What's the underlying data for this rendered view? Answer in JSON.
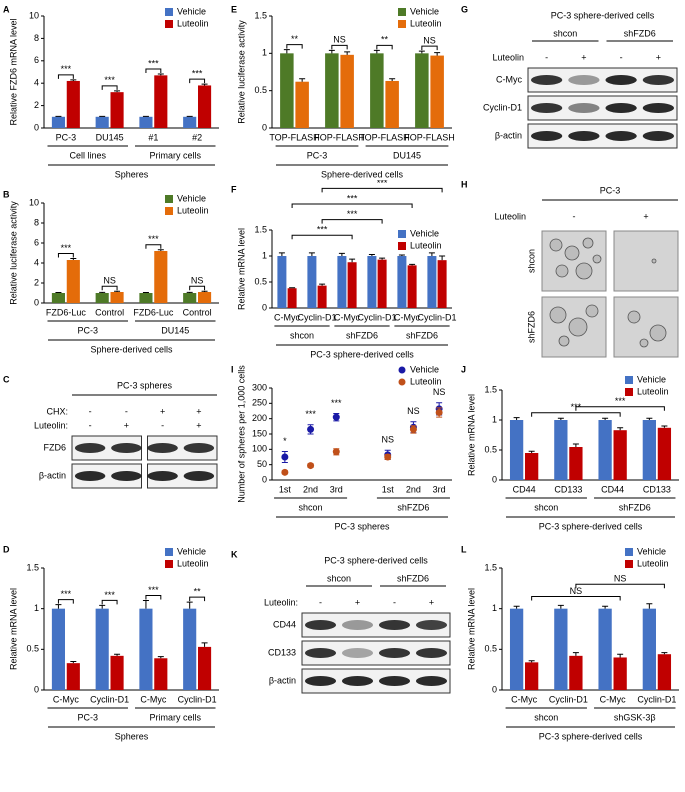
{
  "chart_data": [
    {
      "label": "A",
      "type": "bar",
      "ylabel": "Relative FZD6 mRNA level",
      "categories": [
        "PC-3",
        "DU145",
        "#1",
        "#2"
      ],
      "groups": [
        "Cell lines",
        "Primary cells"
      ],
      "group_title": "Spheres",
      "series": [
        {
          "name": "Vehicle",
          "color": "#4472c4",
          "values": [
            1,
            1,
            1,
            1
          ],
          "errors": [
            0.04,
            0.04,
            0.04,
            0.04
          ]
        },
        {
          "name": "Luteolin",
          "color": "#c00000",
          "values": [
            4.2,
            3.2,
            4.7,
            3.8
          ],
          "errors": [
            0.1,
            0.12,
            0.12,
            0.12
          ]
        }
      ],
      "significance": [
        "***",
        "***",
        "***",
        "***"
      ],
      "ylim": [
        0,
        10
      ],
      "yticks": [
        0,
        2,
        4,
        6,
        8,
        10
      ],
      "legend": "upper right"
    },
    {
      "label": "B",
      "type": "bar",
      "ylabel": "Relative luciferase activity",
      "categories": [
        "FZD6-Luc",
        "Control",
        "FZD6-Luc",
        "Control"
      ],
      "groups": [
        "PC-3",
        "DU145"
      ],
      "group_title": "Sphere-derived cells",
      "series": [
        {
          "name": "Vehicle",
          "color": "#4e7a27",
          "values": [
            1,
            1,
            1,
            1
          ],
          "errors": [
            0.05,
            0.06,
            0.05,
            0.06
          ]
        },
        {
          "name": "Luteolin",
          "color": "#e46c0a",
          "values": [
            4.3,
            1.1,
            5.2,
            1.1
          ],
          "errors": [
            0.15,
            0.08,
            0.12,
            0.08
          ]
        }
      ],
      "significance": [
        "***",
        "NS",
        "***",
        "NS"
      ],
      "ylim": [
        0,
        10
      ],
      "yticks": [
        0,
        2,
        4,
        6,
        8,
        10
      ],
      "legend": "upper right"
    },
    {
      "label": "D",
      "type": "bar",
      "ylabel": "Relative mRNA level",
      "categories": [
        "C-Myc",
        "Cyclin-D1",
        "C-Myc",
        "Cyclin-D1"
      ],
      "groups": [
        "PC-3",
        "Primary cells"
      ],
      "group_title": "Spheres",
      "series": [
        {
          "name": "Vehicle",
          "color": "#4472c4",
          "values": [
            1,
            1,
            1,
            1
          ],
          "errors": [
            0.05,
            0.04,
            0.1,
            0.08
          ]
        },
        {
          "name": "Luteolin",
          "color": "#c00000",
          "values": [
            0.33,
            0.42,
            0.39,
            0.53
          ],
          "errors": [
            0.02,
            0.02,
            0.02,
            0.05
          ]
        }
      ],
      "significance": [
        "***",
        "***",
        "***",
        "**"
      ],
      "ylim": [
        0,
        1.5
      ],
      "yticks": [
        0,
        0.5,
        1,
        1.5
      ],
      "legend": "upper right"
    },
    {
      "label": "E",
      "type": "bar",
      "ylabel": "Relative luciferase activity",
      "categories": [
        "TOP-FLASH",
        "FOP-FLASH",
        "TOP-FLASH",
        "FOP-FLASH"
      ],
      "groups": [
        "PC-3",
        "DU145"
      ],
      "group_title": "Sphere-derived cells",
      "series": [
        {
          "name": "Vehicle",
          "color": "#4e7a27",
          "values": [
            1,
            1,
            1,
            1
          ],
          "errors": [
            0.05,
            0.04,
            0.04,
            0.03
          ]
        },
        {
          "name": "Luteolin",
          "color": "#e46c0a",
          "values": [
            0.62,
            0.98,
            0.63,
            0.97
          ],
          "errors": [
            0.04,
            0.04,
            0.03,
            0.04
          ]
        }
      ],
      "significance": [
        "**",
        "NS",
        "**",
        "NS"
      ],
      "ylim": [
        0,
        1.5
      ],
      "yticks": [
        0,
        0.5,
        1,
        1.5
      ],
      "legend": "upper right"
    },
    {
      "label": "F",
      "type": "bar",
      "ylabel": "Relative mRNA level",
      "categories": [
        "C-Myc",
        "Cyclin-D1",
        "C-Myc",
        "Cyclin-D1",
        "C-Myc",
        "Cyclin-D1"
      ],
      "groups": [
        "shcon",
        "shFZD6",
        "shFZD6"
      ],
      "group_title": "PC-3 sphere-derived cells",
      "series": [
        {
          "name": "Vehicle",
          "color": "#4472c4",
          "values": [
            1,
            1,
            1,
            1,
            1,
            1
          ],
          "errors": [
            0.06,
            0.06,
            0.05,
            0.03,
            0.02,
            0.06
          ]
        },
        {
          "name": "Luteolin",
          "color": "#c00000",
          "values": [
            0.38,
            0.43,
            0.88,
            0.93,
            0.82,
            0.92
          ],
          "errors": [
            0.01,
            0.03,
            0.06,
            0.03,
            0.02,
            0.08
          ]
        }
      ],
      "annotations": [
        "***",
        "***",
        "***",
        "***"
      ],
      "ylim": [
        0,
        1.5
      ],
      "yticks": [
        0,
        0.5,
        1,
        1.5
      ],
      "legend": "upper right"
    },
    {
      "label": "I",
      "type": "scatter",
      "ylabel": "Number of spheres per 1,000 cells",
      "categories": [
        "1st",
        "2nd",
        "3rd",
        null,
        "1st",
        "2nd",
        "3rd"
      ],
      "groups": [
        "shcon",
        "shFZD6"
      ],
      "group_title": "PC-3 spheres",
      "series": [
        {
          "name": "Vehicle",
          "color": "#1a1aa6",
          "values": [
            75,
            165,
            205,
            null,
            82,
            172,
            232
          ],
          "errors": [
            18,
            15,
            12,
            null,
            15,
            18,
            20
          ]
        },
        {
          "name": "Luteolin",
          "color": "#c0501a",
          "values": [
            25,
            47,
            92,
            null,
            75,
            165,
            220
          ],
          "errors": [
            5,
            6,
            10,
            null,
            8,
            12,
            15
          ]
        }
      ],
      "significance": [
        "*",
        "***",
        "***",
        null,
        "NS",
        "NS",
        "NS"
      ],
      "ylim": [
        0,
        300
      ],
      "yticks": [
        0,
        50,
        100,
        150,
        200,
        250,
        300
      ],
      "legend": "upper right"
    },
    {
      "label": "J",
      "type": "bar",
      "ylabel": "Relative mRNA level",
      "categories": [
        "CD44",
        "CD133",
        "CD44",
        "CD133"
      ],
      "groups": [
        "shcon",
        "shFZD6"
      ],
      "group_title": "PC-3 sphere-derived cells",
      "series": [
        {
          "name": "Vehicle",
          "color": "#4472c4",
          "values": [
            1,
            1,
            1,
            1
          ],
          "errors": [
            0.04,
            0.03,
            0.03,
            0.03
          ]
        },
        {
          "name": "Luteolin",
          "color": "#c00000",
          "values": [
            0.45,
            0.55,
            0.83,
            0.87
          ],
          "errors": [
            0.03,
            0.05,
            0.04,
            0.03
          ]
        }
      ],
      "annotations": [
        "***",
        "***"
      ],
      "ylim": [
        0,
        1.5
      ],
      "yticks": [
        0,
        0.5,
        1,
        1.5
      ],
      "legend": "upper right"
    },
    {
      "label": "L",
      "type": "bar",
      "ylabel": "Relative mRNA level",
      "categories": [
        "C-Myc",
        "Cyclin-D1",
        "C-Myc",
        "Cyclin-D1"
      ],
      "groups": [
        "shcon",
        "shGSK-3β"
      ],
      "group_title": "PC-3 sphere-derived cells",
      "series": [
        {
          "name": "Vehicle",
          "color": "#4472c4",
          "values": [
            1,
            1,
            1,
            1
          ],
          "errors": [
            0.03,
            0.04,
            0.03,
            0.06
          ]
        },
        {
          "name": "Luteolin",
          "color": "#c00000",
          "values": [
            0.34,
            0.42,
            0.4,
            0.44
          ],
          "errors": [
            0.02,
            0.04,
            0.04,
            0.02
          ]
        }
      ],
      "annotations": [
        "NS",
        "NS"
      ],
      "ylim": [
        0,
        1.5
      ],
      "yticks": [
        0,
        0.5,
        1,
        1.5
      ],
      "legend": "upper right"
    }
  ],
  "blots": [
    {
      "label": "C",
      "title": "PC-3 spheres",
      "treatments": [
        {
          "name": "CHX:",
          "signs": [
            "-",
            "-",
            "+",
            "+"
          ]
        },
        {
          "name": "Luteolin:",
          "signs": [
            "-",
            "+",
            "-",
            "+"
          ]
        }
      ],
      "bands": [
        "FZD6",
        "β-actin"
      ]
    },
    {
      "label": "G",
      "title": "PC-3 sphere-derived cells",
      "groups": [
        "shcon",
        "shFZD6"
      ],
      "treatments": [
        {
          "name": "Luteolin",
          "signs": [
            "-",
            "+",
            "-",
            "+"
          ]
        }
      ],
      "bands": [
        "C-Myc",
        "Cyclin-D1",
        "β-actin"
      ]
    },
    {
      "label": "K",
      "title": "PC-3 sphere-derived cells",
      "groups": [
        "shcon",
        "shFZD6"
      ],
      "treatments": [
        {
          "name": "Luteolin:",
          "signs": [
            "-",
            "+",
            "-",
            "+"
          ]
        }
      ],
      "bands": [
        "CD44",
        "CD133",
        "β-actin"
      ]
    }
  ],
  "images": {
    "label": "H",
    "title": "PC-3",
    "treatment": "Luteolin",
    "signs": [
      "-",
      "+"
    ],
    "rows": [
      "shcon",
      "shFZD6"
    ]
  }
}
